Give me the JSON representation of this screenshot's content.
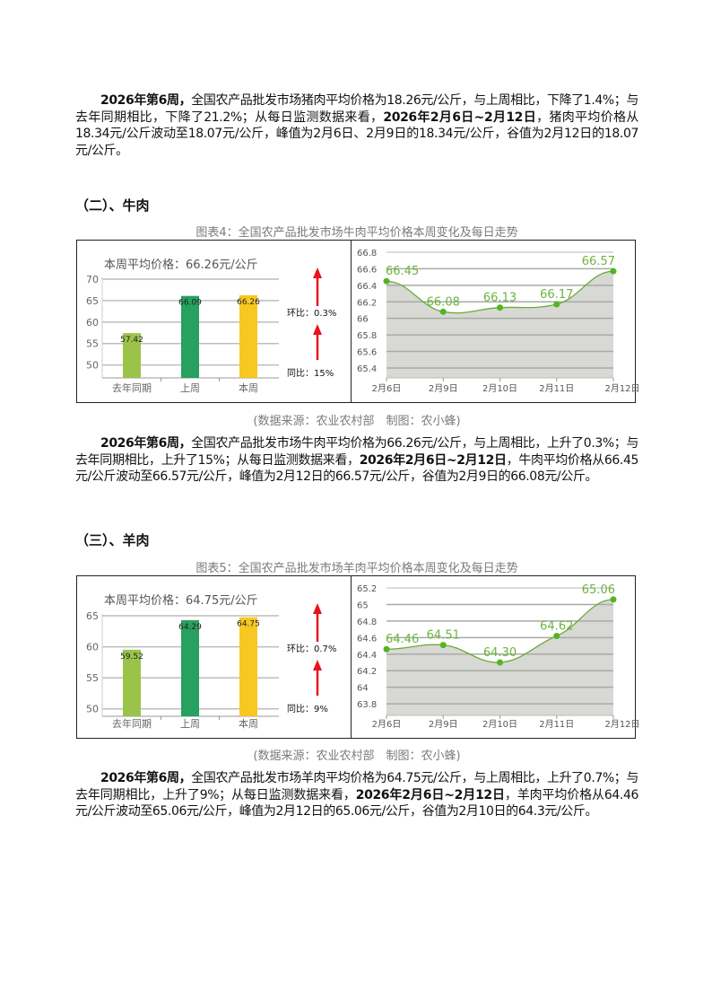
{
  "paragraphs": [
    {
      "parts": [
        {
          "t": "2026年第6周，",
          "b": true
        },
        {
          "t": "全国农产品批发市场猪肉平均价格为18.26元/公斤，与上周相比，下降了1.4%；与去年同期相比，下降了21.2%；从每日监测数据来看，",
          "b": false
        },
        {
          "t": "2026年2月6日~2月12日",
          "b": true
        },
        {
          "t": "，猪肉平均价格从18.34元/公斤波动至18.07元/公斤，峰值为2月6日、2月9日的18.34元/公斤，谷值为2月12日的18.07元/公斤。",
          "b": false
        }
      ]
    },
    {
      "parts": [
        {
          "t": "2026年第6周，",
          "b": true
        },
        {
          "t": "全国农产品批发市场牛肉平均价格为66.26元/公斤，与上周相比，上升了0.3%；与去年同期相比，上升了15%；从每日监测数据来看，",
          "b": false
        },
        {
          "t": "2026年2月6日~2月12日",
          "b": true
        },
        {
          "t": "，牛肉平均价格从66.45元/公斤波动至66.57元/公斤，峰值为2月12日的66.57元/公斤，谷值为2月9日的66.08元/公斤。",
          "b": false
        }
      ]
    },
    {
      "parts": [
        {
          "t": "2026年第6周，",
          "b": true
        },
        {
          "t": "全国农产品批发市场羊肉平均价格为64.75元/公斤，与上周相比，上升了0.7%；与去年同期相比，上升了9%；从每日监测数据来看，",
          "b": false
        },
        {
          "t": "2026年2月6日~2月12日",
          "b": true
        },
        {
          "t": "，羊肉平均价格从64.46元/公斤波动至65.06元/公斤，峰值为2月12日的65.06元/公斤，谷值为2月10日的64.3元/公斤。",
          "b": false
        }
      ]
    }
  ],
  "sections": [
    {
      "heading": "（二）、牛肉",
      "caption": "图表4：全国农产品批发市场牛肉平均价格本周变化及每日走势",
      "source": "(数据来源：农业农村部　制图：农小蜂)"
    },
    {
      "heading": "（三）、羊肉",
      "caption": "图表5：全国农产品批发市场羊肉平均价格本周变化及每日走势",
      "source": "(数据来源：农业农村部　制图：农小蜂)"
    }
  ],
  "colors": {
    "bar_last_year": "#9bc34a",
    "bar_last_week": "#27a060",
    "bar_this_week": "#f8c822",
    "line": "#6aaa3a",
    "point": "#52b51f",
    "label": "#6cb33f",
    "area": "#d8d9d5",
    "arrow": "#e8141b"
  },
  "chart_data": [
    {
      "type": "bar",
      "title": "本周平均价格：66.26元/公斤",
      "categories": [
        "去年同期",
        "上周",
        "本周"
      ],
      "values": [
        57.42,
        66.09,
        66.26
      ],
      "value_labels": [
        "57.42",
        "66.09",
        "66.26"
      ],
      "ylim": [
        47,
        70
      ],
      "yticks": [
        "50",
        "55",
        "60",
        "65",
        "70"
      ],
      "grid": true,
      "annotations": [
        {
          "text": "环比：0.3%",
          "arrow": "up"
        },
        {
          "text": "同比：15%",
          "arrow": "up"
        }
      ]
    },
    {
      "type": "area",
      "categories": [
        "2月6日",
        "2月9日",
        "2月10日",
        "2月11日",
        "2月12日"
      ],
      "values": [
        66.45,
        66.08,
        66.13,
        66.17,
        66.57
      ],
      "value_labels": [
        "66.45",
        "66.08",
        "66.13",
        "66.17",
        "66.57"
      ],
      "ylim": [
        65.28,
        66.8
      ],
      "yticks": [
        "65.4",
        "65.6",
        "65.8",
        "66",
        "66.2",
        "66.4",
        "66.6",
        "66.8"
      ],
      "grid": true
    },
    {
      "type": "bar",
      "title": "本周平均价格：64.75元/公斤",
      "categories": [
        "去年同期",
        "上周",
        "本周"
      ],
      "values": [
        59.52,
        64.29,
        64.75
      ],
      "value_labels": [
        "59.52",
        "64.29",
        "64.75"
      ],
      "ylim": [
        48.8,
        65
      ],
      "yticks": [
        "50",
        "55",
        "60",
        "65"
      ],
      "grid": true,
      "annotations": [
        {
          "text": "环比：0.7%",
          "arrow": "up"
        },
        {
          "text": "同比：9%",
          "arrow": "up"
        }
      ]
    },
    {
      "type": "area",
      "categories": [
        "2月6日",
        "2月9日",
        "2月10日",
        "2月11日",
        "2月12日"
      ],
      "values": [
        64.46,
        64.51,
        64.3,
        64.62,
        65.06
      ],
      "value_labels": [
        "64.46",
        "64.51",
        "64.30",
        "64.62",
        "65.06"
      ],
      "ylim": [
        63.66,
        65.2
      ],
      "yticks": [
        "63.8",
        "64",
        "64.2",
        "64.4",
        "64.6",
        "64.8",
        "65",
        "65.2"
      ],
      "grid": true
    }
  ]
}
